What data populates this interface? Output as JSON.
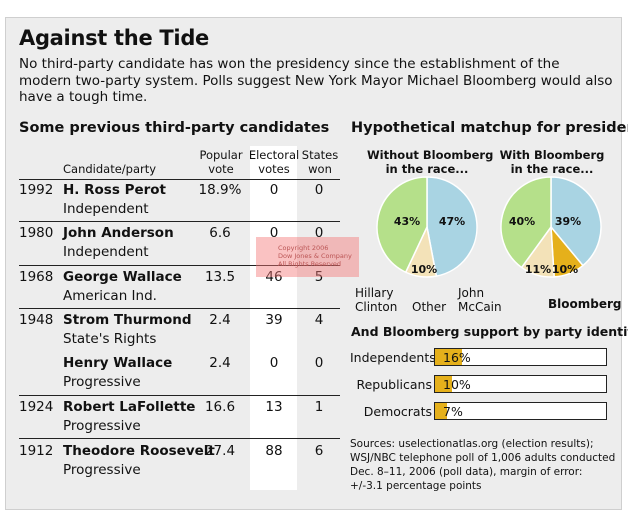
{
  "title": "Against the Tide",
  "subtitle": "No third-party candidate has won the presidency since the establishment of the modern two-party system. Polls suggest New York Mayor Michael Bloomberg would also have a tough time.",
  "left_heading": "Some previous third-party candidates",
  "columns": {
    "candidate": "Candidate/party",
    "popular": [
      "Popular",
      "vote"
    ],
    "electoral": [
      "Electoral",
      "votes"
    ],
    "states": [
      "States",
      "won"
    ]
  },
  "rows": [
    {
      "year": "1992",
      "name": "H. Ross Perot",
      "party": "Independent",
      "popular": "18.9%",
      "electoral": "0",
      "states": "0"
    },
    {
      "year": "1980",
      "name": "John Anderson",
      "party": "Independent",
      "popular": "6.6",
      "electoral": "0",
      "states": "0"
    },
    {
      "year": "1968",
      "name": "George Wallace",
      "party": "American Ind.",
      "popular": "13.5",
      "electoral": "46",
      "states": "5"
    },
    {
      "year": "1948",
      "name": "Strom Thurmond",
      "party": "State's Rights",
      "popular": "2.4",
      "electoral": "39",
      "states": "4"
    },
    {
      "year": "",
      "name": "Henry Wallace",
      "party": "Progressive",
      "popular": "2.4",
      "electoral": "0",
      "states": "0"
    },
    {
      "year": "1924",
      "name": "Robert LaFollette",
      "party": "Progressive",
      "popular": "16.6",
      "electoral": "13",
      "states": "1"
    },
    {
      "year": "1912",
      "name": "Theodore Roosevelt",
      "party": "Progressive",
      "popular": "27.4",
      "electoral": "88",
      "states": "6"
    }
  ],
  "watermark": [
    "Copyright 2006",
    "Dow Jones & Company",
    "All Rights Reserved"
  ],
  "right_heading": "Hypothetical matchup for president",
  "colors": {
    "clinton": "#b5e08a",
    "mccain": "#a9d4e3",
    "other": "#f3e2b8",
    "bloomberg": "#e5b01b",
    "frame": "#ededed"
  },
  "chart_data": [
    {
      "type": "pie",
      "title": "Without Bloomberg in the race...",
      "labels": [
        "John McCain",
        "Other",
        "Hillary Clinton"
      ],
      "values": [
        47,
        10,
        43
      ],
      "value_labels": [
        "47%",
        "10%",
        "43%"
      ]
    },
    {
      "type": "pie",
      "title": "With Bloomberg in the race...",
      "labels": [
        "John McCain",
        "Bloomberg",
        "Other",
        "Hillary Clinton"
      ],
      "values": [
        39,
        10,
        11,
        40
      ],
      "value_labels": [
        "39%",
        "10%",
        "11%",
        "40%"
      ]
    },
    {
      "type": "bar",
      "title": "And Bloomberg support by party identity",
      "categories": [
        "Independents",
        "Republicans",
        "Democrats"
      ],
      "values": [
        16,
        10,
        7
      ],
      "value_labels": [
        "16%",
        "10%",
        "7%"
      ],
      "xlim": [
        0,
        100
      ]
    }
  ],
  "pie_titles": [
    [
      "Without Bloomberg",
      "in the race..."
    ],
    [
      "With Bloomberg",
      "in the race..."
    ]
  ],
  "pie_legend": {
    "clinton": [
      "Hillary",
      "Clinton"
    ],
    "other": "Other",
    "mccain": [
      "John",
      "McCain"
    ],
    "bloomberg": "Bloomberg"
  },
  "sources": "Sources: uselectionatlas.org (election results); WSJ/NBC telephone poll of 1,006 adults conducted Dec. 8–11, 2006 (poll data), margin of error: +/-3.1 percentage points"
}
